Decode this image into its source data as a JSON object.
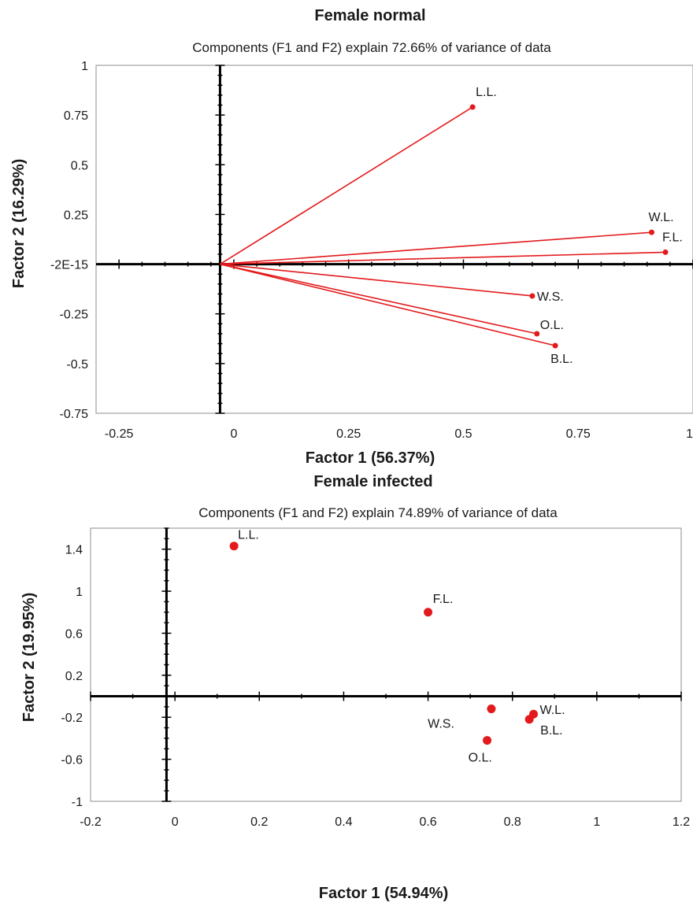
{
  "chart_data": [
    {
      "type": "scatter",
      "style": "vectors",
      "title": "Female normal",
      "subtitle": "Components (F1 and F2) explain 72.66% of variance of data",
      "xlabel": "Factor 1 (56.37%)",
      "ylabel": "Factor 2 (16.29%)",
      "xlim": [
        -0.3,
        1.0
      ],
      "ylim": [
        -0.75,
        1.0
      ],
      "x_ticks": [
        {
          "v": -0.25,
          "label": "-0.25"
        },
        {
          "v": 0,
          "label": "0"
        },
        {
          "v": 0.25,
          "label": "0.25"
        },
        {
          "v": 0.5,
          "label": "0.5"
        },
        {
          "v": 0.75,
          "label": "0.75"
        },
        {
          "v": 1.0,
          "label": "1"
        }
      ],
      "y_ticks": [
        {
          "v": -0.75,
          "label": "-0.75"
        },
        {
          "v": -0.5,
          "label": "-0.5"
        },
        {
          "v": -0.25,
          "label": "-0.25"
        },
        {
          "v": 0,
          "label": "-2E-15"
        },
        {
          "v": 0.25,
          "label": "0.25"
        },
        {
          "v": 0.5,
          "label": "0.5"
        },
        {
          "v": 0.75,
          "label": "0.75"
        },
        {
          "v": 1.0,
          "label": "1"
        }
      ],
      "origin": [
        -0.03,
        0
      ],
      "point_color": "#e31a1c",
      "points": [
        {
          "label": "L.L.",
          "x": 0.52,
          "y": 0.79
        },
        {
          "label": "W.L.",
          "x": 0.91,
          "y": 0.16
        },
        {
          "label": "F.L.",
          "x": 0.94,
          "y": 0.06
        },
        {
          "label": "W.S.",
          "x": 0.65,
          "y": -0.16
        },
        {
          "label": "O.L.",
          "x": 0.66,
          "y": -0.35
        },
        {
          "label": "B.L.",
          "x": 0.7,
          "y": -0.41
        }
      ]
    },
    {
      "type": "scatter",
      "style": "points",
      "title": "Female infected",
      "subtitle": "Components (F1 and F2) explain 74.89% of variance of data",
      "xlabel": "Factor 1 (54.94%)",
      "ylabel": "Factor  2 (19.95%)",
      "xlim": [
        -0.2,
        1.2
      ],
      "ylim": [
        -1.0,
        1.6
      ],
      "x_ticks": [
        {
          "v": -0.2,
          "label": "-0.2"
        },
        {
          "v": 0,
          "label": "0"
        },
        {
          "v": 0.2,
          "label": "0.2"
        },
        {
          "v": 0.4,
          "label": "0.4"
        },
        {
          "v": 0.6,
          "label": "0.6"
        },
        {
          "v": 0.8,
          "label": "0.8"
        },
        {
          "v": 1.0,
          "label": "1"
        },
        {
          "v": 1.2,
          "label": "1.2"
        }
      ],
      "y_ticks": [
        {
          "v": -1.0,
          "label": "-1"
        },
        {
          "v": -0.6,
          "label": "-0.6"
        },
        {
          "v": -0.2,
          "label": "-0.2"
        },
        {
          "v": 0.2,
          "label": "0.2"
        },
        {
          "v": 0.6,
          "label": "0.6"
        },
        {
          "v": 1.0,
          "label": "1"
        },
        {
          "v": 1.4,
          "label": "1.4"
        }
      ],
      "point_color": "#e31a1c",
      "points": [
        {
          "label": "L.L.",
          "x": 0.14,
          "y": 1.43
        },
        {
          "label": "F.L.",
          "x": 0.6,
          "y": 0.8
        },
        {
          "label": "W.S.",
          "x": 0.75,
          "y": -0.12
        },
        {
          "label": "W.L.",
          "x": 0.85,
          "y": -0.17
        },
        {
          "label": "B.L.",
          "x": 0.84,
          "y": -0.22
        },
        {
          "label": "O.L.",
          "x": 0.74,
          "y": -0.42
        }
      ]
    }
  ]
}
